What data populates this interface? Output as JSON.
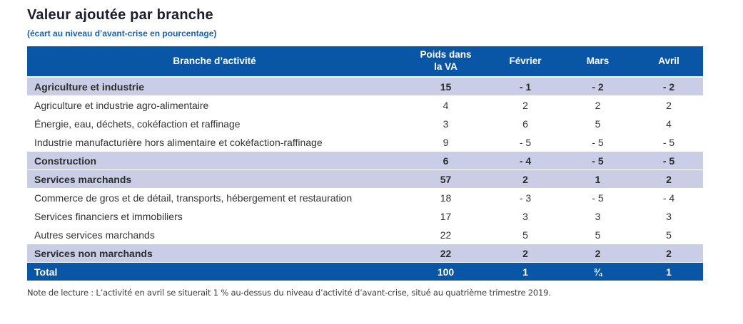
{
  "page": {
    "title": "Valeur ajoutée par branche",
    "subtitle": "(écart au niveau d’avant-crise en pourcentage)",
    "note": "Note de lecture : L’activité en avril se situerait 1 % au-dessus du niveau d’activité d’avant-crise, situé au quatrième trimestre 2019."
  },
  "colors": {
    "header_bg": "#0a56a6",
    "section_row_bg": "#c9cde6",
    "total_row_bg": "#0a56a6",
    "title_color": "#1d1d30",
    "subtitle_color": "#1362b3",
    "body_text": "#333333"
  },
  "table": {
    "columns": [
      {
        "key": "branche",
        "label": "Branche d’activité"
      },
      {
        "key": "poids",
        "label": "Poids dans\nla VA"
      },
      {
        "key": "fevrier",
        "label": "Février"
      },
      {
        "key": "mars",
        "label": "Mars"
      },
      {
        "key": "avril",
        "label": "Avril"
      }
    ],
    "rows": [
      {
        "label": "Agriculture et industrie",
        "values": [
          "15",
          "- 1",
          "- 2",
          "- 2"
        ],
        "style": "section"
      },
      {
        "label": "Agriculture et industrie agro-alimentaire",
        "values": [
          "4",
          "2",
          "2",
          "2"
        ],
        "style": "normal"
      },
      {
        "label": "Énergie, eau, déchets, cokéfaction et raffinage",
        "values": [
          "3",
          "6",
          "5",
          "4"
        ],
        "style": "normal"
      },
      {
        "label": "Industrie manufacturière hors alimentaire et cokéfaction-raffinage",
        "values": [
          "9",
          "- 5",
          "- 5",
          "- 5"
        ],
        "style": "normal"
      },
      {
        "label": "Construction",
        "values": [
          "6",
          "- 4",
          "- 5",
          "- 5"
        ],
        "style": "section"
      },
      {
        "label": "Services marchands",
        "values": [
          "57",
          "2",
          "1",
          "2"
        ],
        "style": "section"
      },
      {
        "label": "Commerce de gros et de détail, transports, hébergement et restauration",
        "values": [
          "18",
          "- 3",
          "- 5",
          "- 4"
        ],
        "style": "normal"
      },
      {
        "label": "Services financiers et immobiliers",
        "values": [
          "17",
          "3",
          "3",
          "3"
        ],
        "style": "normal"
      },
      {
        "label": "Autres services marchands",
        "values": [
          "22",
          "5",
          "5",
          "5"
        ],
        "style": "normal"
      },
      {
        "label": "Services non marchands",
        "values": [
          "22",
          "2",
          "2",
          "2"
        ],
        "style": "section"
      },
      {
        "label": "Total",
        "values": [
          "100",
          "1",
          "¾",
          "1"
        ],
        "style": "total"
      }
    ]
  },
  "chart_data": {
    "type": "table",
    "title": "Valeur ajoutée par branche",
    "subtitle": "(écart au niveau d’avant-crise en pourcentage)",
    "columns": [
      "Branche d’activité",
      "Poids dans la VA",
      "Février",
      "Mars",
      "Avril"
    ],
    "rows": [
      {
        "branche": "Agriculture et industrie",
        "poids": 15,
        "fevrier": -1,
        "mars": -2,
        "avril": -2
      },
      {
        "branche": "Agriculture et industrie agro-alimentaire",
        "poids": 4,
        "fevrier": 2,
        "mars": 2,
        "avril": 2
      },
      {
        "branche": "Énergie, eau, déchets, cokéfaction et raffinage",
        "poids": 3,
        "fevrier": 6,
        "mars": 5,
        "avril": 4
      },
      {
        "branche": "Industrie manufacturière hors alimentaire et cokéfaction-raffinage",
        "poids": 9,
        "fevrier": -5,
        "mars": -5,
        "avril": -5
      },
      {
        "branche": "Construction",
        "poids": 6,
        "fevrier": -4,
        "mars": -5,
        "avril": -5
      },
      {
        "branche": "Services marchands",
        "poids": 57,
        "fevrier": 2,
        "mars": 1,
        "avril": 2
      },
      {
        "branche": "Commerce de gros et de détail, transports, hébergement et restauration",
        "poids": 18,
        "fevrier": -3,
        "mars": -5,
        "avril": -4
      },
      {
        "branche": "Services financiers et immobiliers",
        "poids": 17,
        "fevrier": 3,
        "mars": 3,
        "avril": 3
      },
      {
        "branche": "Autres services marchands",
        "poids": 22,
        "fevrier": 5,
        "mars": 5,
        "avril": 5
      },
      {
        "branche": "Services non marchands",
        "poids": 22,
        "fevrier": 2,
        "mars": 2,
        "avril": 2
      },
      {
        "branche": "Total",
        "poids": 100,
        "fevrier": 1,
        "mars": 0.75,
        "avril": 1
      }
    ]
  }
}
